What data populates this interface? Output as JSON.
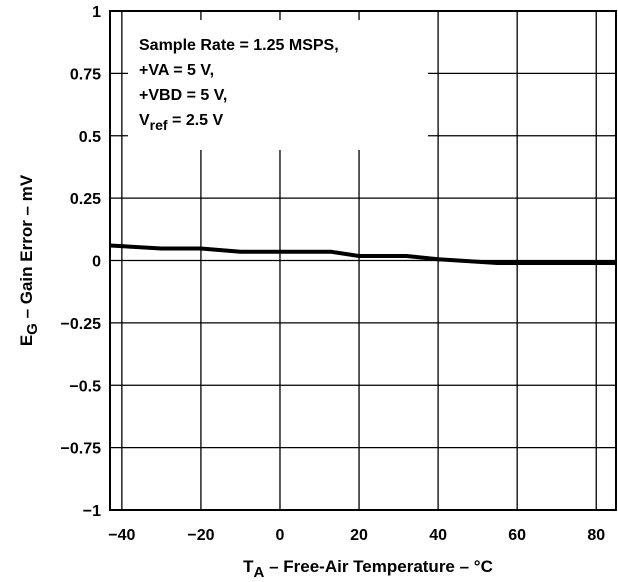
{
  "chart_data": {
    "type": "line",
    "title": "",
    "xlabel": {
      "main": "T",
      "sub": "A",
      "rest": " – Free-Air Temperature – °C"
    },
    "ylabel": {
      "main": "E",
      "sub": "G",
      "rest": " – Gain Error – mV"
    },
    "xlim": [
      -43,
      85
    ],
    "ylim": [
      -1,
      1
    ],
    "x_ticks": [
      -40,
      -20,
      0,
      20,
      40,
      60,
      80
    ],
    "x_tick_labels": [
      "−40",
      "−20",
      "0",
      "20",
      "40",
      "60",
      "80"
    ],
    "y_ticks": [
      1,
      0.75,
      0.5,
      0.25,
      0,
      -0.25,
      -0.5,
      -0.75,
      -1
    ],
    "y_tick_labels": [
      "1",
      "0.75",
      "0.5",
      "0.25",
      "0",
      "−0.25",
      "−0.5",
      "−0.75",
      "−1"
    ],
    "x_grid": [
      -40,
      -20,
      0,
      20,
      40,
      60,
      80
    ],
    "y_grid": [
      0.75,
      0.5,
      0.25,
      0,
      -0.25,
      -0.5,
      -0.75
    ],
    "grid": true,
    "annotation": {
      "lines": [
        {
          "text": "Sample Rate = 1.25 MSPS,"
        },
        {
          "text": "+VA = 5 V,"
        },
        {
          "text": "+VBD = 5 V,"
        },
        {
          "main": "V",
          "sub": "ref",
          "rest": " = 2.5 V"
        }
      ],
      "placement": "top-left"
    },
    "series": [
      {
        "x": [
          -43,
          -30,
          -20,
          -10,
          0,
          13,
          20,
          32,
          40,
          45,
          55,
          85
        ],
        "y": [
          0.06,
          0.048,
          0.048,
          0.035,
          0.035,
          0.035,
          0.018,
          0.018,
          0.005,
          0.0,
          -0.01,
          -0.01
        ]
      }
    ],
    "colors": {
      "line": "#000000",
      "grid": "#000000",
      "background": "#ffffff"
    }
  }
}
